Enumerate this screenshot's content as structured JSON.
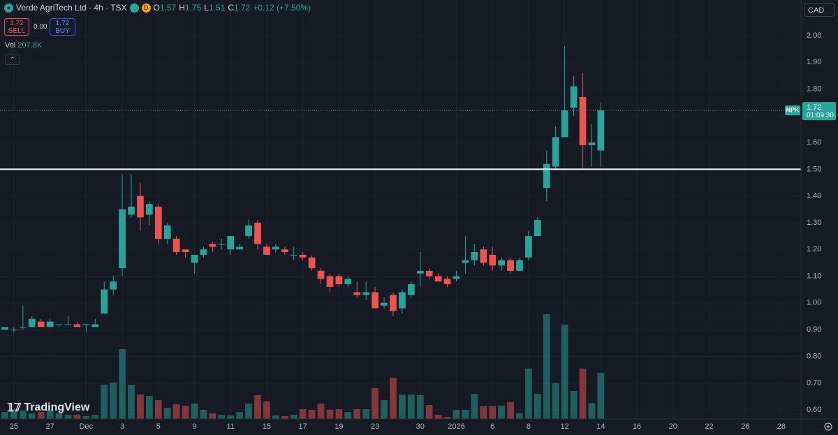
{
  "ui": {
    "title": "Verde AgriTech Ltd · 4h · TSX",
    "session_badge": "D",
    "ohlc_labels": [
      "O",
      "H",
      "L",
      "C"
    ],
    "change": "+0.12 (+7.50%)",
    "sell_price": 1.72,
    "sell_label": "SELL",
    "spread": "0.00",
    "buy_price": 1.72,
    "buy_label": "BUY",
    "vol_label": "Vol",
    "vol_value": "207.8K",
    "currency": "CAD",
    "symbol_tag": "NPK",
    "countdown": "01:09:30",
    "logo": "TradingView"
  },
  "chart_data": {
    "type": "candlestick",
    "open": [
      0.9,
      0.9,
      0.91,
      0.91,
      0.93,
      0.91,
      0.92,
      0.92,
      0.92,
      0.92,
      0.91,
      0.96,
      1.05,
      1.13,
      1.33,
      1.4,
      1.33,
      1.36,
      1.24,
      1.24,
      1.2,
      1.15,
      1.18,
      1.22,
      1.22,
      1.2,
      1.2,
      1.25,
      1.3,
      1.21,
      1.2,
      1.2,
      1.18,
      1.18,
      1.17,
      1.12,
      1.1,
      1.1,
      1.07,
      1.04,
      1.03,
      1.04,
      0.99,
      1.03,
      0.98,
      1.03,
      1.11,
      1.12,
      1.1,
      1.09,
      1.09,
      1.15,
      1.16,
      1.2,
      1.18,
      1.14,
      1.16,
      1.12,
      1.17,
      1.25,
      1.43,
      1.51,
      1.62,
      1.73,
      1.77,
      1.59,
      1.57
    ],
    "high": [
      0.91,
      0.91,
      0.99,
      0.95,
      0.94,
      0.94,
      0.92,
      0.95,
      0.93,
      0.92,
      0.94,
      1.08,
      1.1,
      1.48,
      1.48,
      1.45,
      1.38,
      1.37,
      1.3,
      1.25,
      1.2,
      1.18,
      1.21,
      1.23,
      1.24,
      1.25,
      1.22,
      1.31,
      1.31,
      1.22,
      1.22,
      1.21,
      1.21,
      1.19,
      1.18,
      1.13,
      1.11,
      1.11,
      1.1,
      1.08,
      1.08,
      1.06,
      1.02,
      1.04,
      1.05,
      1.08,
      1.19,
      1.13,
      1.11,
      1.1,
      1.12,
      1.25,
      1.22,
      1.21,
      1.21,
      1.17,
      1.17,
      1.17,
      1.27,
      1.32,
      1.57,
      1.66,
      1.96,
      1.85,
      1.86,
      1.67,
      1.75
    ],
    "low": [
      0.9,
      0.89,
      0.9,
      0.91,
      0.91,
      0.91,
      0.91,
      0.92,
      0.91,
      0.89,
      0.91,
      0.96,
      1.03,
      1.1,
      1.32,
      1.27,
      1.29,
      1.22,
      1.22,
      1.18,
      1.17,
      1.11,
      1.17,
      1.19,
      1.2,
      1.18,
      1.2,
      1.24,
      1.2,
      1.18,
      1.19,
      1.18,
      1.16,
      1.16,
      1.12,
      1.07,
      1.04,
      1.06,
      1.06,
      1.02,
      1.01,
      0.98,
      0.98,
      0.95,
      0.96,
      1.02,
      1.06,
      1.09,
      1.08,
      1.06,
      1.08,
      1.11,
      1.14,
      1.14,
      1.12,
      1.12,
      1.11,
      1.12,
      1.16,
      1.25,
      1.38,
      1.5,
      1.62,
      1.7,
      1.5,
      1.51,
      1.51
    ],
    "close": [
      0.91,
      0.9,
      0.91,
      0.94,
      0.91,
      0.93,
      0.92,
      0.92,
      0.91,
      0.92,
      0.92,
      1.05,
      1.08,
      1.35,
      1.36,
      1.32,
      1.37,
      1.24,
      1.29,
      1.19,
      1.19,
      1.18,
      1.2,
      1.21,
      1.22,
      1.25,
      1.21,
      1.29,
      1.22,
      1.18,
      1.21,
      1.19,
      1.18,
      1.17,
      1.13,
      1.09,
      1.06,
      1.07,
      1.09,
      1.03,
      1.04,
      0.98,
      1.0,
      0.97,
      1.04,
      1.07,
      1.12,
      1.1,
      1.08,
      1.07,
      1.1,
      1.16,
      1.19,
      1.15,
      1.14,
      1.16,
      1.12,
      1.16,
      1.25,
      1.31,
      1.52,
      1.62,
      1.72,
      1.81,
      1.59,
      1.6,
      1.72
    ],
    "volume": [
      31000,
      44000,
      38000,
      25000,
      31000,
      41000,
      25000,
      19000,
      19000,
      13000,
      19000,
      154000,
      164000,
      315000,
      154000,
      110000,
      104000,
      85000,
      50000,
      66000,
      60000,
      69000,
      41000,
      25000,
      19000,
      16000,
      31000,
      69000,
      107000,
      79000,
      16000,
      13000,
      19000,
      44000,
      41000,
      69000,
      41000,
      44000,
      31000,
      44000,
      44000,
      139000,
      85000,
      186000,
      110000,
      110000,
      107000,
      63000,
      19000,
      9000,
      41000,
      41000,
      113000,
      57000,
      57000,
      60000,
      76000,
      25000,
      227000,
      113000,
      472000,
      161000,
      425000,
      126000,
      227000,
      72000,
      207800
    ],
    "up_color": "#26a69a",
    "down_color": "#ef5350",
    "hline": 1.5,
    "ylim": [
      0.566,
      2.133
    ],
    "yticks": [
      {
        "value": 0.6,
        "label": "0.60"
      },
      {
        "value": 0.7,
        "label": "0.70"
      },
      {
        "value": 0.8,
        "label": "0.80"
      },
      {
        "value": 0.9,
        "label": "0.90"
      },
      {
        "value": 1.0,
        "label": "1.00"
      },
      {
        "value": 1.1,
        "label": "1.10"
      },
      {
        "value": 1.2,
        "label": "1.20"
      },
      {
        "value": 1.3,
        "label": "1.30"
      },
      {
        "value": 1.4,
        "label": "1.40"
      },
      {
        "value": 1.5,
        "label": "1.50"
      },
      {
        "value": 1.6,
        "label": "1.60"
      },
      {
        "value": 1.7,
        "label": "1.70"
      },
      {
        "value": 1.8,
        "label": "1.80"
      },
      {
        "value": 1.9,
        "label": "1.90"
      },
      {
        "value": 2.0,
        "label": "2.00"
      }
    ],
    "xlim": [
      -0.54,
      88.17
    ],
    "xticks": [
      {
        "value": 1,
        "label": "25"
      },
      {
        "value": 5,
        "label": "27"
      },
      {
        "value": 9,
        "label": "Dec"
      },
      {
        "value": 13,
        "label": "3"
      },
      {
        "value": 17,
        "label": "5"
      },
      {
        "value": 21,
        "label": "9"
      },
      {
        "value": 25,
        "label": "11"
      },
      {
        "value": 29,
        "label": "15"
      },
      {
        "value": 33,
        "label": "17"
      },
      {
        "value": 37,
        "label": "19"
      },
      {
        "value": 41,
        "label": "23"
      },
      {
        "value": 46,
        "label": "30"
      },
      {
        "value": 50,
        "label": "2026"
      },
      {
        "value": 54,
        "label": "6"
      },
      {
        "value": 58,
        "label": "8"
      },
      {
        "value": 62,
        "label": "12"
      },
      {
        "value": 66,
        "label": "14"
      },
      {
        "value": 70,
        "label": "16"
      },
      {
        "value": 74,
        "label": "20"
      },
      {
        "value": 78,
        "label": "22"
      },
      {
        "value": 82,
        "label": "26"
      },
      {
        "value": 86,
        "label": "28"
      }
    ],
    "grid": true
  }
}
